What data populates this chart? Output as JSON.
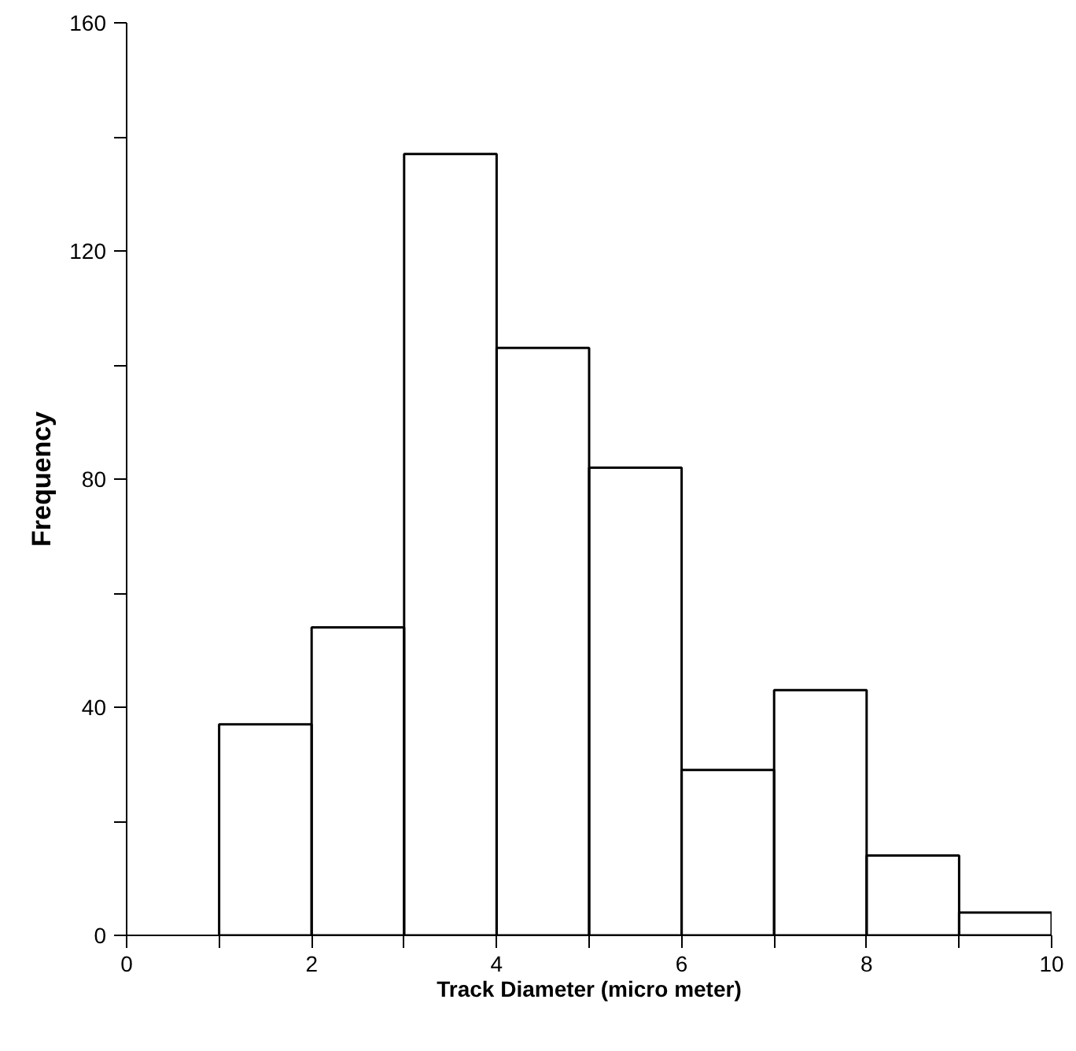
{
  "chart_data": {
    "type": "histogram",
    "xlabel": "Track Diameter (micro meter)",
    "ylabel": "Frequency",
    "bins": [
      1,
      2,
      3,
      4,
      5,
      6,
      7,
      8,
      9,
      10
    ],
    "values": [
      37,
      54,
      137,
      103,
      82,
      29,
      43,
      14,
      4
    ],
    "color": "#000000",
    "xlim": [
      0,
      10
    ],
    "xticks": [
      0,
      2,
      4,
      6,
      8,
      10,
      {
        "value": 1,
        "label": null
      },
      {
        "value": 3,
        "label": null
      },
      {
        "value": 5,
        "label": null
      },
      {
        "value": 7,
        "label": null
      },
      {
        "value": 9,
        "label": null
      }
    ],
    "ylim": [
      0,
      160
    ],
    "yticks": [
      0,
      40,
      80,
      120,
      160,
      {
        "value": 20,
        "label": null
      },
      {
        "value": 60,
        "label": null
      },
      {
        "value": 100,
        "label": null
      },
      {
        "value": 140,
        "label": null
      }
    ],
    "grid": false
  }
}
